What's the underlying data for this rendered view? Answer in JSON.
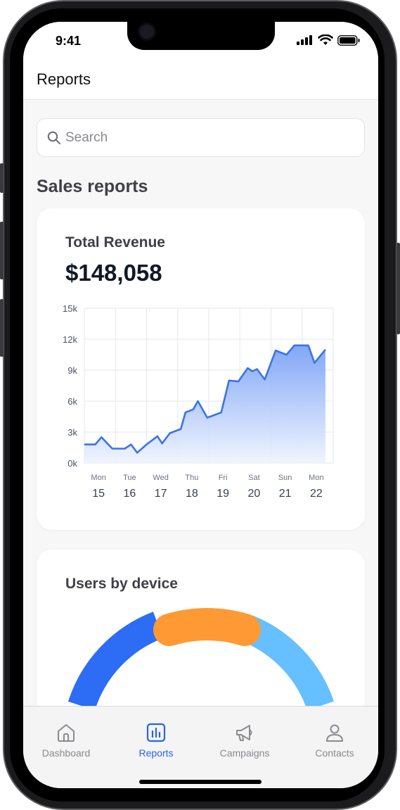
{
  "status_bar": {
    "time": "9:41"
  },
  "header": {
    "title": "Reports"
  },
  "search": {
    "placeholder": "Search",
    "icon": "search-icon"
  },
  "section": {
    "title": "Sales reports"
  },
  "revenue_card": {
    "label": "Total Revenue",
    "value": "$148,058"
  },
  "users_card": {
    "title": "Users by device",
    "segments": [
      {
        "name": "segment-1",
        "color": "#2d6cf5"
      },
      {
        "name": "segment-2",
        "color": "#ff9933"
      },
      {
        "name": "segment-3",
        "color": "#66bfff"
      }
    ]
  },
  "tabbar": {
    "tabs": [
      {
        "label": "Dashboard",
        "icon": "home-icon",
        "active": false
      },
      {
        "label": "Reports",
        "icon": "chart-icon",
        "active": true
      },
      {
        "label": "Campaigns",
        "icon": "megaphone-icon",
        "active": false
      },
      {
        "label": "Contacts",
        "icon": "user-icon",
        "active": false
      }
    ]
  },
  "colors": {
    "accent": "#2563eb",
    "line": "#3b73e8",
    "area_top": "#7aa2f7",
    "area_bottom": "#eef3fe"
  },
  "chart_data": {
    "type": "area",
    "title": "",
    "xlabel": "",
    "ylabel": "",
    "ylim": [
      0,
      15000
    ],
    "yticks": [
      "0k",
      "3k",
      "6k",
      "9k",
      "12k",
      "15k"
    ],
    "ytick_values": [
      0,
      3000,
      6000,
      9000,
      12000,
      15000
    ],
    "xlim": [
      0,
      8
    ],
    "x_labels": [
      {
        "day": "Mon",
        "date": "15"
      },
      {
        "day": "Tue",
        "date": "16"
      },
      {
        "day": "Wed",
        "date": "17"
      },
      {
        "day": "Thu",
        "date": "18"
      },
      {
        "day": "Fri",
        "date": "19"
      },
      {
        "day": "Sat",
        "date": "20"
      },
      {
        "day": "Sun",
        "date": "21"
      },
      {
        "day": "Mon",
        "date": "22"
      }
    ],
    "grid": true,
    "series": [
      {
        "points": [
          [
            0,
            1800
          ],
          [
            0.35,
            1800
          ],
          [
            0.55,
            2500
          ],
          [
            0.9,
            1400
          ],
          [
            1.3,
            1400
          ],
          [
            1.5,
            1800
          ],
          [
            1.7,
            1000
          ],
          [
            2.0,
            1800
          ],
          [
            2.35,
            2600
          ],
          [
            2.5,
            1900
          ],
          [
            2.75,
            2900
          ],
          [
            3.1,
            3300
          ],
          [
            3.25,
            4900
          ],
          [
            3.5,
            5200
          ],
          [
            3.65,
            6000
          ],
          [
            3.95,
            4400
          ],
          [
            4.4,
            4900
          ],
          [
            4.65,
            8000
          ],
          [
            4.95,
            7900
          ],
          [
            5.25,
            9200
          ],
          [
            5.4,
            8900
          ],
          [
            5.55,
            9100
          ],
          [
            5.8,
            8100
          ],
          [
            6.15,
            10900
          ],
          [
            6.5,
            10500
          ],
          [
            6.75,
            11400
          ],
          [
            7.2,
            11400
          ],
          [
            7.4,
            9700
          ],
          [
            7.75,
            11000
          ]
        ]
      }
    ]
  }
}
